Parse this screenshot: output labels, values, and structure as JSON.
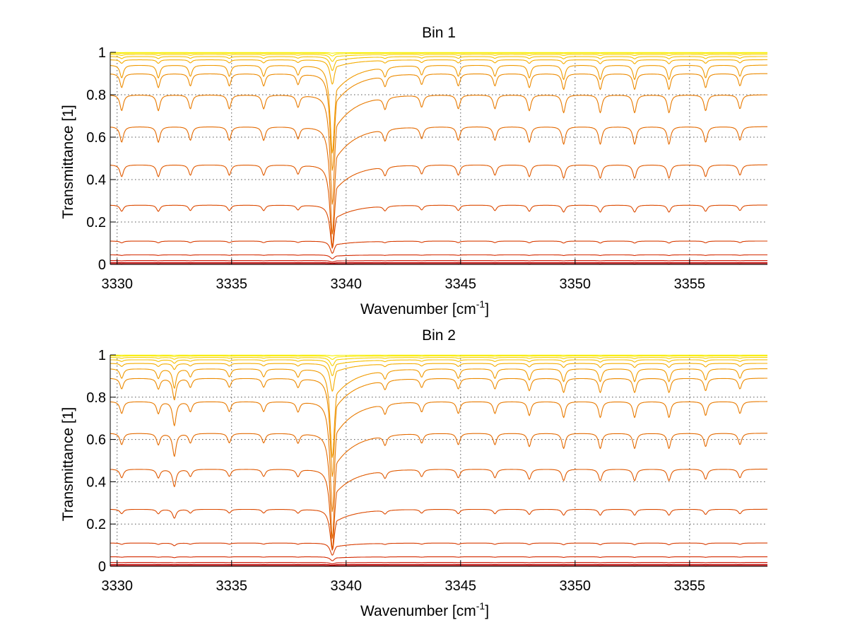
{
  "chart_data": [
    {
      "type": "line",
      "title": "Bin 1",
      "xlabel": "Wavenumber [cm",
      "xlabel_sup": "-1",
      "xlabel_close": "]",
      "ylabel": "Transmittance [1]",
      "xlim": [
        3329.7,
        3358.4
      ],
      "ylim": [
        0,
        1
      ],
      "xticks": [
        3330,
        3335,
        3340,
        3345,
        3350,
        3355
      ],
      "xtick_labels": [
        "3330",
        "3335",
        "3340",
        "3345",
        "3350",
        "3355"
      ],
      "yticks": [
        0,
        0.2,
        0.4,
        0.6,
        0.8,
        1
      ],
      "ytick_labels": [
        "0",
        "0.2",
        "0.4",
        "0.6",
        "0.8",
        "1"
      ],
      "grid": true,
      "baseline_levels": [
        0.004,
        0.009,
        0.018,
        0.045,
        0.11,
        0.28,
        0.47,
        0.65,
        0.8,
        0.9,
        0.94,
        0.965,
        0.98,
        0.99,
        0.996,
        0.999
      ],
      "line_centers": [
        3330.2,
        3331.8,
        3333.2,
        3334.9,
        3336.4,
        3337.9,
        3339.4,
        3341.7,
        3343.3,
        3344.9,
        3346.5,
        3348.0,
        3349.5,
        3351.1,
        3352.6,
        3354.1,
        3355.7,
        3357.2
      ],
      "line_strengths": [
        0.08,
        0.08,
        0.07,
        0.07,
        0.07,
        0.06,
        0.55,
        0.06,
        0.06,
        0.07,
        0.07,
        0.08,
        0.09,
        0.09,
        0.09,
        0.09,
        0.08,
        0.07
      ],
      "colors": [
        "#b30000",
        "#c00000",
        "#cc1400",
        "#d42a00",
        "#d83c00",
        "#dc4a00",
        "#e05a00",
        "#e46a00",
        "#e87a00",
        "#ec8a00",
        "#f09a00",
        "#f4ac00",
        "#f6bf00",
        "#f8d200",
        "#fae600",
        "#f6f200"
      ]
    },
    {
      "type": "line",
      "title": "Bin 2",
      "xlabel": "Wavenumber [cm",
      "xlabel_sup": "-1",
      "xlabel_close": "]",
      "ylabel": "Transmittance [1]",
      "xlim": [
        3329.7,
        3358.4
      ],
      "ylim": [
        0,
        1
      ],
      "xticks": [
        3330,
        3335,
        3340,
        3345,
        3350,
        3355
      ],
      "xtick_labels": [
        "3330",
        "3335",
        "3340",
        "3345",
        "3350",
        "3355"
      ],
      "yticks": [
        0,
        0.2,
        0.4,
        0.6,
        0.8,
        1
      ],
      "ytick_labels": [
        "0",
        "0.2",
        "0.4",
        "0.6",
        "0.8",
        "1"
      ],
      "grid": true,
      "baseline_levels": [
        0.004,
        0.009,
        0.018,
        0.045,
        0.11,
        0.27,
        0.46,
        0.63,
        0.78,
        0.89,
        0.935,
        0.96,
        0.977,
        0.988,
        0.995,
        0.999
      ],
      "line_centers": [
        3330.2,
        3331.8,
        3332.5,
        3333.2,
        3334.9,
        3336.4,
        3337.9,
        3339.4,
        3341.7,
        3343.3,
        3344.9,
        3346.5,
        3348.0,
        3349.5,
        3351.1,
        3352.6,
        3354.1,
        3355.7,
        3357.2
      ],
      "line_strengths": [
        0.06,
        0.06,
        0.12,
        0.05,
        0.05,
        0.05,
        0.05,
        0.55,
        0.05,
        0.05,
        0.06,
        0.06,
        0.07,
        0.08,
        0.08,
        0.08,
        0.08,
        0.07,
        0.06
      ],
      "colors": [
        "#b30000",
        "#c00000",
        "#cc1400",
        "#d42a00",
        "#d83c00",
        "#dc4a00",
        "#e05a00",
        "#e46a00",
        "#e87a00",
        "#ec8a00",
        "#f09a00",
        "#f4ac00",
        "#f6bf00",
        "#f8d200",
        "#fae600",
        "#f6f200"
      ]
    }
  ]
}
